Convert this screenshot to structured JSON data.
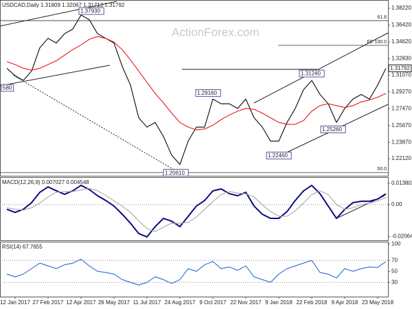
{
  "chart_data": [
    {
      "type": "line",
      "title": "USDCAD,Daily  1.31809 1.32067 1.31713 1.31792",
      "watermark": "ActionForex.com",
      "categories": [
        null,
        "12 Jan 2017",
        null,
        null,
        null,
        "27 Feb 2017",
        null,
        null,
        null,
        "12 Apr 2017",
        null,
        null,
        null,
        "26 May 2017",
        null,
        null,
        null,
        "11 Jul 2017",
        null,
        null,
        null,
        "24 Aug 2017",
        null,
        null,
        null,
        "9 Oct 2017",
        null,
        null,
        null,
        "22 Nov 2017",
        null,
        null,
        null,
        "9 Jan 2018",
        null,
        null,
        null,
        "22 Feb 2018",
        null,
        null,
        null,
        "9 Apr 2018",
        null,
        null,
        null,
        "23 May 2018",
        null
      ],
      "series": [
        {
          "color": "#1a1a1a",
          "values": [
            1.318,
            1.31,
            1.305,
            1.315,
            1.34,
            1.35,
            1.345,
            1.355,
            1.36,
            1.375,
            1.37,
            1.355,
            1.35,
            1.345,
            1.32,
            1.3,
            1.265,
            1.255,
            1.26,
            1.245,
            1.225,
            1.215,
            1.24,
            1.255,
            1.255,
            1.285,
            1.28,
            1.28,
            1.275,
            1.285,
            1.265,
            1.255,
            1.24,
            1.24,
            1.26,
            1.275,
            1.295,
            1.305,
            1.29,
            1.28,
            1.26,
            1.275,
            1.285,
            1.29,
            1.285,
            1.3,
            1.31792
          ]
        },
        {
          "color": "#e8141e",
          "values": [
            1.325,
            1.322,
            1.318,
            1.316,
            1.318,
            1.322,
            1.326,
            1.332,
            1.338,
            1.343,
            1.349,
            1.352,
            1.35,
            1.346,
            1.338,
            1.327,
            1.315,
            1.303,
            1.291,
            1.281,
            1.27,
            1.26,
            1.255,
            1.252,
            1.253,
            1.257,
            1.263,
            1.268,
            1.272,
            1.275,
            1.274,
            1.27,
            1.265,
            1.26,
            1.258,
            1.258,
            1.262,
            1.272,
            1.278,
            1.28,
            1.278,
            1.276,
            1.278,
            1.282,
            1.284,
            1.287,
            1.291
          ]
        }
      ],
      "ylim": [
        1.2029,
        1.3911
      ],
      "yticks": [
        {
          "value": 1.3822,
          "label": "1.38220"
        },
        {
          "value": 1.3642,
          "label": "1.36420"
        },
        {
          "value": 1.3462,
          "label": "1.34620"
        },
        {
          "value": 1.3283,
          "label": "1.32830"
        },
        {
          "value": 1.3107,
          "label": "1.31070"
        },
        {
          "value": 1.2927,
          "label": "1.29270"
        },
        {
          "value": 1.2747,
          "label": "1.27470"
        },
        {
          "value": 1.2567,
          "label": "1.25670"
        },
        {
          "value": 1.2387,
          "label": "1.23870"
        },
        {
          "value": 1.2212,
          "label": "1.22120"
        }
      ],
      "grid": false,
      "last": {
        "value": 1.31792,
        "label": "1.31792"
      },
      "levels": [
        {
          "label": "61.8",
          "value": 1.369
        },
        {
          "label": "FE 100.0",
          "value": 1.3426
        },
        {
          "label": "50.0",
          "value": 1.2064
        }
      ],
      "annotations": [
        {
          "label": "1.37930",
          "value": 1.3793
        },
        {
          "label": "1.29160",
          "value": 1.2916
        },
        {
          "label": "1.31240",
          "value": 1.3124
        },
        {
          "label": "1.25260",
          "value": 1.2526
        },
        {
          "label": "1.22460",
          "value": 1.2246
        },
        {
          "label": "1.20610",
          "value": 1.2061
        },
        {
          "label": "580"
        }
      ]
    },
    {
      "type": "line",
      "title": "MACD(12,26,9) 0.007027 0.004548",
      "series": [
        {
          "color": "#0a0a80",
          "values": [
            -0.003,
            -0.005,
            -0.003,
            0.0013,
            0.008,
            0.0115,
            0.009,
            0.0067,
            0.009,
            0.0125,
            0.0098,
            0.0058,
            0.0027,
            -0.0009,
            -0.0062,
            -0.012,
            -0.0187,
            -0.0209,
            -0.0142,
            -0.0089,
            -0.0107,
            -0.0142,
            -0.0076,
            -0.0009,
            0.0027,
            0.0089,
            0.0102,
            0.0071,
            0.0058,
            0.008,
            -0.0009,
            -0.0062,
            -0.0089,
            -0.0089,
            -0.0045,
            0.0027,
            0.0089,
            0.0125,
            0.0071,
            -0.0009,
            -0.0089,
            -0.0031,
            0.0013,
            0.0022,
            0.0022,
            0.0036,
            0.007027
          ]
        },
        {
          "color": "#a8a8a8",
          "values": [
            -0.002,
            -0.003,
            -0.0035,
            -0.002,
            0.001,
            0.005,
            0.008,
            0.0085,
            0.0085,
            0.0095,
            0.0105,
            0.009,
            0.006,
            0.0025,
            -0.001,
            -0.005,
            -0.0105,
            -0.0155,
            -0.0175,
            -0.0145,
            -0.012,
            -0.012,
            -0.0115,
            -0.008,
            -0.003,
            0.002,
            0.0065,
            0.0085,
            0.0075,
            0.007,
            0.005,
            0.0,
            -0.0045,
            -0.0075,
            -0.0075,
            -0.004,
            0.001,
            0.0065,
            0.009,
            0.0065,
            0.0,
            -0.003,
            -0.002,
            0.0,
            0.001,
            0.0025,
            0.004548
          ]
        }
      ],
      "ylim": [
        -0.0231,
        0.0178
      ],
      "yticks": [
        0.013802,
        {
          "value": 0,
          "label": "0.00"
        },
        -0.020648
      ],
      "grid": false
    },
    {
      "type": "line",
      "title": "RSI(14) 67.7655",
      "series": [
        {
          "color": "#2a6fd0",
          "values": [
            45,
            40,
            45,
            55,
            65,
            60,
            55,
            62,
            65,
            72,
            60,
            50,
            48,
            45,
            35,
            30,
            25,
            30,
            40,
            35,
            28,
            35,
            55,
            50,
            62,
            68,
            55,
            58,
            52,
            60,
            40,
            35,
            30,
            45,
            55,
            60,
            65,
            70,
            48,
            45,
            38,
            55,
            50,
            55,
            58,
            57,
            67.7655
          ]
        }
      ],
      "ylim": [
        4,
        104
      ],
      "yticks": [
        100,
        70,
        50,
        30
      ],
      "grid": false
    }
  ]
}
